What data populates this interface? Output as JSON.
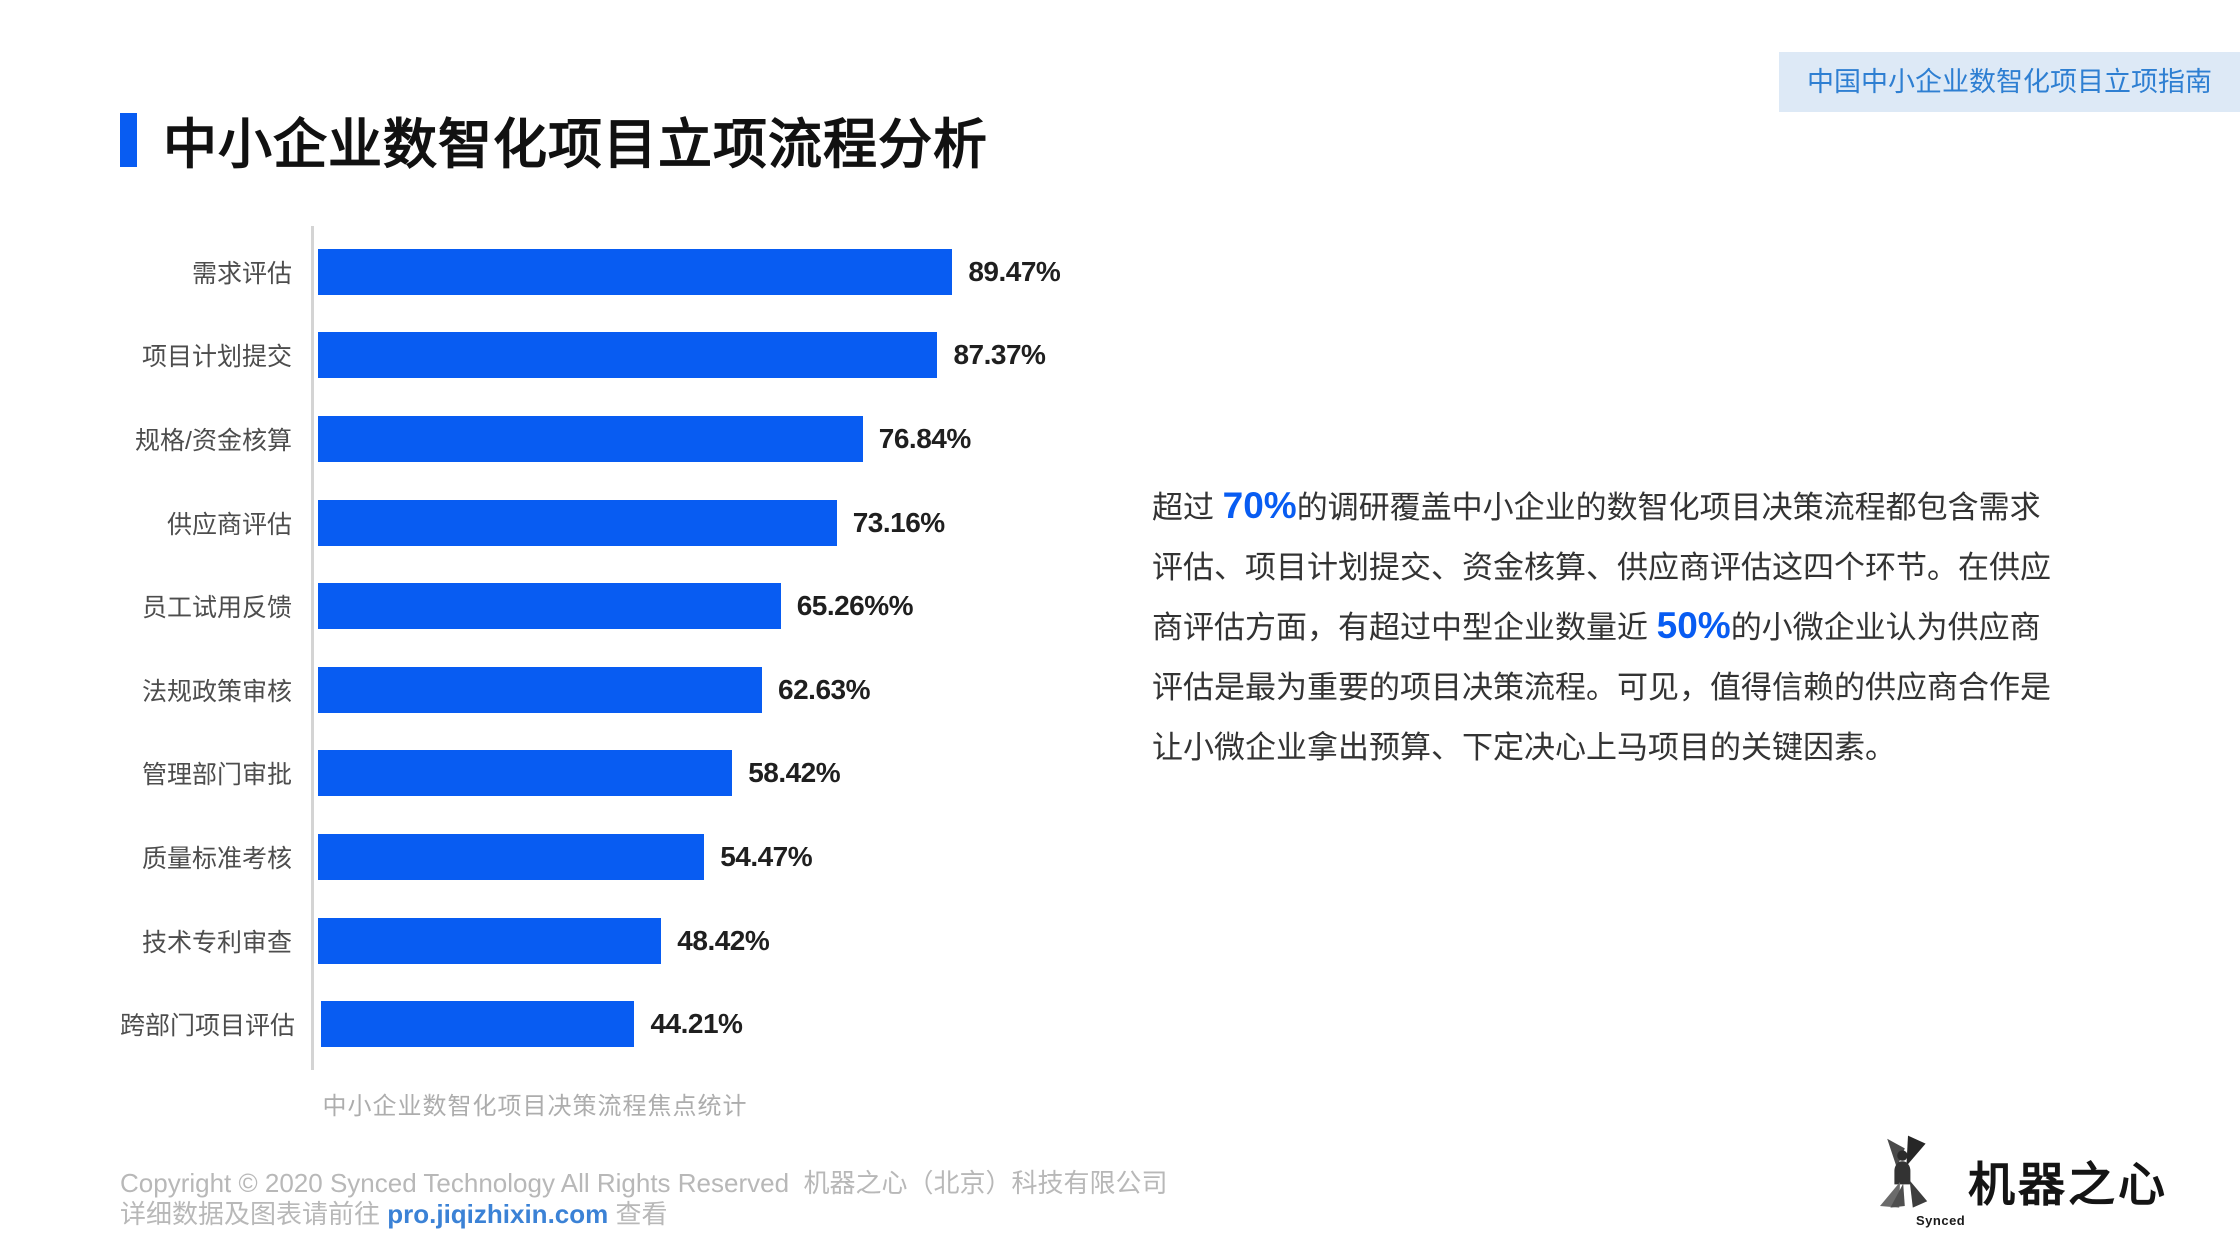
{
  "badge": {
    "label": "中国中小企业数智化项目立项指南"
  },
  "header": {
    "title": "中小企业数智化项目立项流程分析"
  },
  "chart_data": {
    "type": "bar",
    "orientation": "horizontal",
    "title": "中小企业数智化项目立项流程分析",
    "caption": "中小企业数智化项目决策流程焦点统计",
    "categories": [
      "需求评估",
      "项目计划提交",
      "规格/资金核算",
      "供应商评估",
      "员工试用反馈",
      "法规政策审核",
      "管理部门审批",
      "质量标准考核",
      "技术专利审查",
      "跨部门项目评估"
    ],
    "values": [
      89.47,
      87.37,
      76.84,
      73.16,
      65.26,
      62.63,
      58.42,
      54.47,
      48.42,
      44.21
    ],
    "value_labels": [
      "89.47%",
      "87.37%",
      "76.84%",
      "73.16%",
      "65.26%%",
      "62.63%",
      "58.42%",
      "54.47%",
      "48.42%",
      "44.21%"
    ],
    "xlim": [
      0,
      100
    ],
    "grid": false,
    "legend": false,
    "bar_color": "#085cf2"
  },
  "paragraph": {
    "segments": [
      {
        "text": "超过 ",
        "highlight": false,
        "br": false
      },
      {
        "text": "70%",
        "highlight": true,
        "br": false
      },
      {
        "text": "的调研覆盖中小企业的数智化项目决策流程都包含需求",
        "highlight": false,
        "br": true
      },
      {
        "text": "评估、项目计划提交、资金核算、供应商评估这四个环节。在供应",
        "highlight": false,
        "br": true
      },
      {
        "text": "商评估方面，有超过中型企业数量近 ",
        "highlight": false,
        "br": false
      },
      {
        "text": "50%",
        "highlight": true,
        "br": false
      },
      {
        "text": "的小微企业认为供应商",
        "highlight": false,
        "br": true
      },
      {
        "text": "评估是最为重要的项目决策流程。可见，值得信赖的供应商合作是",
        "highlight": false,
        "br": true
      },
      {
        "text": "让小微企业拿出预算、下定决心上马项目的关键因素。",
        "highlight": false,
        "br": false
      }
    ]
  },
  "footer": {
    "line1": "Copyright © 2020 Synced Technology All Rights Reserved  机器之心（北京）科技有限公司",
    "line2_prefix": "详细数据及图表请前往 ",
    "link": "pro.jiqizhixin.com",
    "line2_suffix": " 查看"
  },
  "logo": {
    "wordmark": "机器之心",
    "subtext": "Synced"
  },
  "colors": {
    "accent_blue": "#085cf2",
    "badge_bg": "#dde9f6",
    "badge_text": "#2e7fd2",
    "link_blue": "#3b82d6",
    "axis_gray": "#d4d4d4",
    "caption_gray": "#adadad",
    "footer_gray": "#b8b8b8"
  }
}
